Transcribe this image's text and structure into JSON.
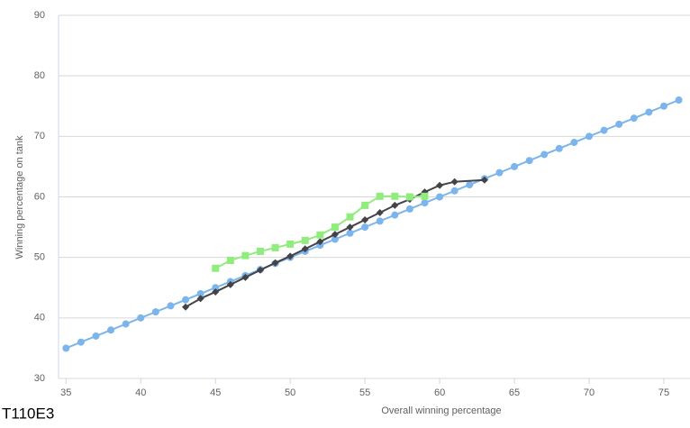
{
  "chart_data": {
    "type": "line",
    "title": "T110E3",
    "x_label": "Overall winning percentage",
    "y_label": "Winning percentage on tank",
    "xlim": [
      34.5,
      76.75
    ],
    "xticks": [
      35,
      40,
      45,
      50,
      55,
      60,
      65,
      70,
      75
    ],
    "ylim": [
      30,
      90
    ],
    "yticks": [
      30,
      40,
      50,
      60,
      70,
      80,
      90
    ],
    "grid": true,
    "series": [
      {
        "color": "#7cb5ec",
        "marker": "circle",
        "x": [
          35,
          36,
          37,
          38,
          39,
          40,
          41,
          42,
          43,
          44,
          45,
          46,
          47,
          48,
          49,
          50,
          51,
          52,
          53,
          54,
          55,
          56,
          57,
          58,
          59,
          60,
          61,
          62,
          63,
          64,
          65,
          66,
          67,
          68,
          69,
          70,
          71,
          72,
          73,
          74,
          75,
          76
        ],
        "values": [
          35,
          36,
          37,
          38,
          39,
          40,
          41,
          42,
          43,
          44,
          45,
          46,
          47,
          48,
          49,
          50,
          51,
          52,
          53,
          54,
          55,
          56,
          57,
          58,
          59,
          60,
          61,
          62,
          63,
          64,
          65,
          66,
          67,
          68,
          69,
          70,
          71,
          72,
          73,
          74,
          75,
          76
        ]
      },
      {
        "color": "#434348",
        "marker": "diamond",
        "x": [
          43,
          44,
          45,
          46,
          47,
          48,
          49,
          50,
          51,
          52,
          53,
          54,
          55,
          56,
          57,
          58,
          59,
          60,
          61,
          63
        ],
        "values": [
          41.8,
          43.2,
          44.3,
          45.5,
          46.7,
          47.9,
          49.1,
          50.2,
          51.4,
          52.6,
          53.8,
          55.0,
          56.2,
          57.4,
          58.6,
          59.6,
          60.8,
          61.9,
          62.5,
          62.8
        ]
      },
      {
        "color": "#90ed7d",
        "marker": "square",
        "x": [
          45,
          46,
          47,
          48,
          49,
          50,
          51,
          52,
          53,
          54,
          55,
          56,
          57,
          58,
          59
        ],
        "values": [
          48.2,
          49.5,
          50.3,
          51.0,
          51.6,
          52.2,
          52.8,
          53.7,
          55.0,
          56.7,
          58.6,
          60.1,
          60.1,
          60.0,
          60.1
        ]
      }
    ]
  }
}
